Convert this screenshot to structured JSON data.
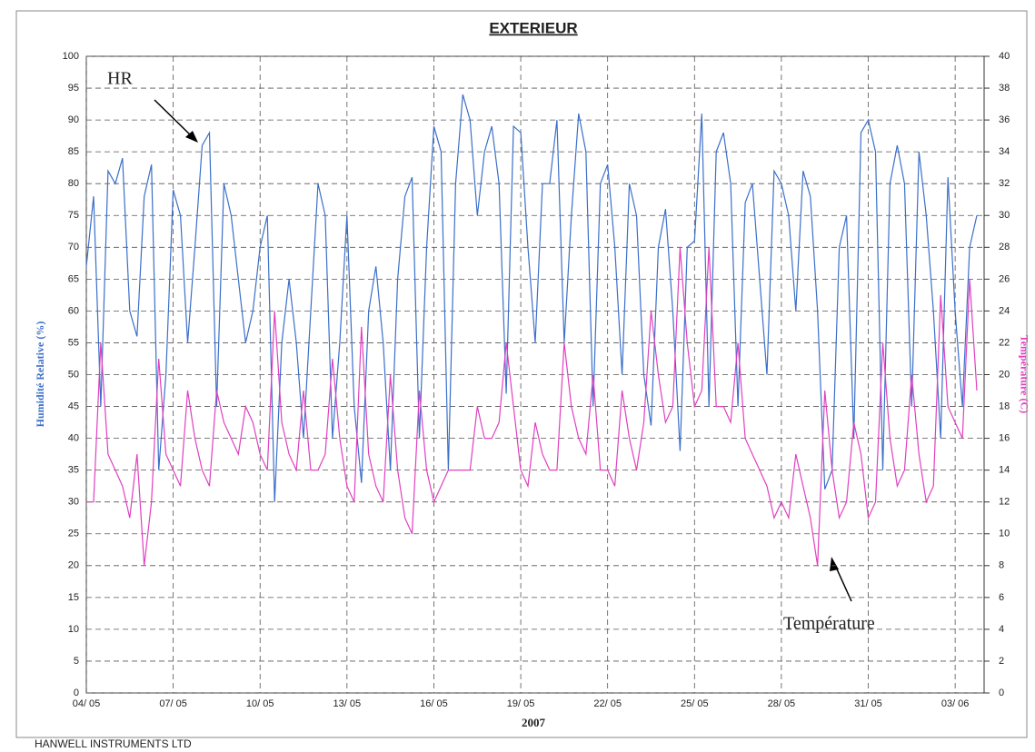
{
  "chart_data": {
    "type": "line",
    "title": "EXTERIEUR",
    "xlabel": "2007",
    "ylabel": "Humidité Relative (%)",
    "y2label": "Température (C)",
    "footer": "HANWELL INSTRUMENTS LTD",
    "annotations": [
      "HR",
      "Température"
    ],
    "x": [
      0,
      0.25,
      0.5,
      0.75,
      1,
      1.25,
      1.5,
      1.75,
      2,
      2.25,
      2.5,
      2.75,
      3,
      3.25,
      3.5,
      3.75,
      4,
      4.25,
      4.5,
      4.75,
      5,
      5.25,
      5.5,
      5.75,
      6,
      6.25,
      6.5,
      6.75,
      7,
      7.25,
      7.5,
      7.75,
      8,
      8.25,
      8.5,
      8.75,
      9,
      9.25,
      9.5,
      9.75,
      10,
      10.25,
      10.5,
      10.75,
      11,
      11.25,
      11.5,
      11.75,
      12,
      12.25,
      12.5,
      12.75,
      13,
      13.25,
      13.5,
      13.75,
      14,
      14.25,
      14.5,
      14.75,
      15,
      15.25,
      15.5,
      15.75,
      16,
      16.25,
      16.5,
      16.75,
      17,
      17.25,
      17.5,
      17.75,
      18,
      18.25,
      18.5,
      18.75,
      19,
      19.25,
      19.5,
      19.75,
      20,
      20.25,
      20.5,
      20.75,
      21,
      21.25,
      21.5,
      21.75,
      22,
      22.25,
      22.5,
      22.75,
      23,
      23.25,
      23.5,
      23.75,
      24,
      24.25,
      24.5,
      24.75,
      25,
      25.25,
      25.5,
      25.75,
      26,
      26.25,
      26.5,
      26.75,
      27,
      27.25,
      27.5,
      27.75,
      28,
      28.25,
      28.5,
      28.75,
      29,
      29.25,
      29.5,
      29.75,
      30,
      30.25,
      30.5,
      30.75
    ],
    "series": [
      {
        "name": "HR",
        "color": "#3b6fc9",
        "axis": "y",
        "values": [
          67,
          78,
          45,
          82,
          80,
          84,
          60,
          56,
          78,
          83,
          35,
          50,
          79,
          75,
          55,
          70,
          86,
          88,
          45,
          80,
          75,
          65,
          55,
          60,
          70,
          75,
          30,
          55,
          65,
          55,
          40,
          60,
          80,
          75,
          40,
          55,
          75,
          45,
          33,
          60,
          67,
          55,
          35,
          65,
          78,
          81,
          40,
          70,
          89,
          85,
          35,
          80,
          94,
          90,
          75,
          85,
          89,
          80,
          47,
          89,
          88,
          70,
          55,
          80,
          80,
          90,
          55,
          75,
          91,
          85,
          45,
          80,
          83,
          70,
          50,
          80,
          75,
          50,
          42,
          70,
          76,
          60,
          38,
          70,
          71,
          91,
          45,
          85,
          88,
          80,
          45,
          77,
          80,
          65,
          50,
          82,
          80,
          75,
          60,
          82,
          78,
          60,
          32,
          35,
          70,
          75,
          40,
          88,
          90,
          85,
          35,
          80,
          86,
          80,
          45,
          85,
          75,
          60,
          40,
          81,
          60,
          45,
          70,
          75
        ]
      },
      {
        "name": "Température",
        "color": "#e040c0",
        "axis": "y2",
        "values": [
          12,
          12,
          22,
          15,
          14,
          13,
          11,
          15,
          8,
          12,
          21,
          15,
          14,
          13,
          19,
          16,
          14,
          13,
          19,
          17,
          16,
          15,
          18,
          17,
          15,
          14,
          24,
          17,
          15,
          14,
          19,
          14,
          14,
          15,
          21,
          16,
          13,
          12,
          23,
          15,
          13,
          12,
          20,
          14,
          11,
          10,
          19,
          14,
          12,
          13,
          14,
          14,
          14,
          14,
          18,
          16,
          16,
          17,
          22,
          18,
          14,
          13,
          17,
          15,
          14,
          14,
          22,
          18,
          16,
          15,
          20,
          14,
          14,
          13,
          19,
          16,
          14,
          17,
          24,
          20,
          17,
          18,
          28,
          22,
          18,
          19,
          28,
          18,
          18,
          17,
          22,
          16,
          15,
          14,
          13,
          11,
          12,
          11,
          15,
          13,
          11,
          8,
          19,
          14,
          11,
          12,
          17,
          15,
          11,
          12,
          22,
          16,
          13,
          14,
          20,
          15,
          12,
          13,
          25,
          18,
          17,
          16,
          26,
          19
        ]
      }
    ],
    "xlim": [
      0,
      31
    ],
    "xticks": [
      {
        "value": 0,
        "label": "04/ 05"
      },
      {
        "value": 3,
        "label": "07/ 05"
      },
      {
        "value": 6,
        "label": "10/ 05"
      },
      {
        "value": 9,
        "label": "13/ 05"
      },
      {
        "value": 12,
        "label": "16/ 05"
      },
      {
        "value": 15,
        "label": "19/ 05"
      },
      {
        "value": 18,
        "label": "22/ 05"
      },
      {
        "value": 21,
        "label": "25/ 05"
      },
      {
        "value": 24,
        "label": "28/ 05"
      },
      {
        "value": 27,
        "label": "31/ 05"
      },
      {
        "value": 30,
        "label": "03/ 06"
      }
    ],
    "ylim": [
      0,
      100
    ],
    "yticks": [
      0,
      5,
      10,
      15,
      20,
      25,
      30,
      35,
      40,
      45,
      50,
      55,
      60,
      65,
      70,
      75,
      80,
      85,
      90,
      95,
      100
    ],
    "y2lim": [
      0,
      40
    ],
    "y2ticks": [
      0,
      2,
      4,
      6,
      8,
      10,
      12,
      14,
      16,
      18,
      20,
      22,
      24,
      26,
      28,
      30,
      32,
      34,
      36,
      38,
      40
    ],
    "grid": true
  }
}
